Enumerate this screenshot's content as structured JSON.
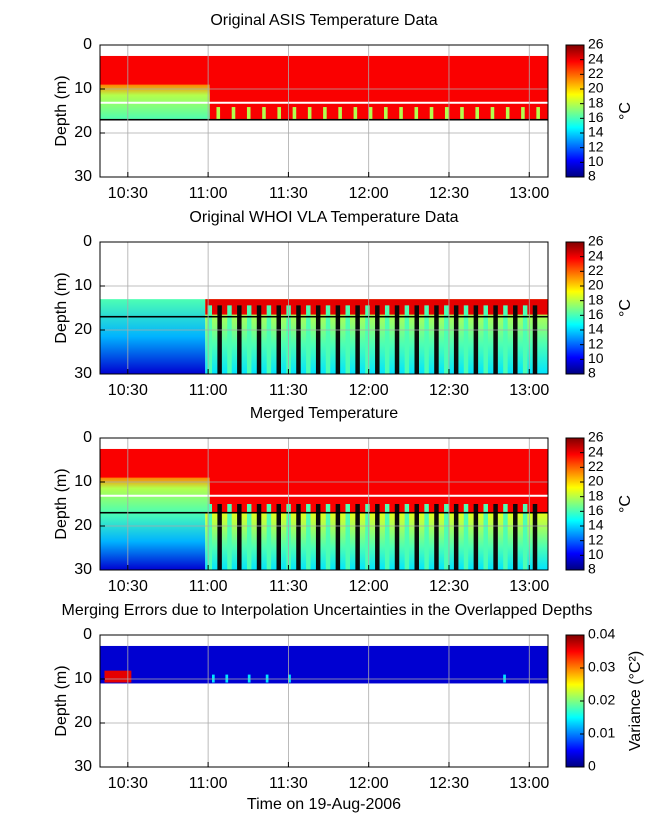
{
  "chart_data": [
    {
      "type": "contour",
      "title": "Original ASIS Temperature Data",
      "ylabel": "Depth (m)",
      "xlim": [
        619.6,
        787
      ],
      "xticks": [
        {
          "value": 630,
          "label": "10:30"
        },
        {
          "value": 660,
          "label": "11:00"
        },
        {
          "value": 690,
          "label": "11:30"
        },
        {
          "value": 720,
          "label": "12:00"
        },
        {
          "value": 750,
          "label": "12:30"
        },
        {
          "value": 780,
          "label": "13:00"
        }
      ],
      "ylim": [
        0,
        30
      ],
      "invert_y": true,
      "yticks": [
        0,
        10,
        20,
        30
      ],
      "grid": true,
      "colormap": "jet",
      "clim": [
        8,
        26
      ],
      "cticks": [
        8,
        10,
        12,
        14,
        16,
        18,
        20,
        22,
        24,
        26
      ],
      "clabel": "°C"
    },
    {
      "type": "contour",
      "title": "Original WHOI VLA Temperature Data",
      "ylabel": "Depth (m)",
      "xlim": [
        619.6,
        787
      ],
      "xticks": [
        {
          "value": 630,
          "label": "10:30"
        },
        {
          "value": 660,
          "label": "11:00"
        },
        {
          "value": 690,
          "label": "11:30"
        },
        {
          "value": 720,
          "label": "12:00"
        },
        {
          "value": 750,
          "label": "12:30"
        },
        {
          "value": 780,
          "label": "13:00"
        }
      ],
      "ylim": [
        0,
        30
      ],
      "invert_y": true,
      "yticks": [
        0,
        10,
        20,
        30
      ],
      "grid": true,
      "colormap": "jet",
      "clim": [
        8,
        26
      ],
      "cticks": [
        8,
        10,
        12,
        14,
        16,
        18,
        20,
        22,
        24,
        26
      ],
      "clabel": "°C"
    },
    {
      "type": "contour",
      "title": "Merged Temperature",
      "ylabel": "Depth (m)",
      "xlim": [
        619.6,
        787
      ],
      "xticks": [
        {
          "value": 630,
          "label": "10:30"
        },
        {
          "value": 660,
          "label": "11:00"
        },
        {
          "value": 690,
          "label": "11:30"
        },
        {
          "value": 720,
          "label": "12:00"
        },
        {
          "value": 750,
          "label": "12:30"
        },
        {
          "value": 780,
          "label": "13:00"
        }
      ],
      "ylim": [
        0,
        30
      ],
      "invert_y": true,
      "yticks": [
        0,
        10,
        20,
        30
      ],
      "grid": true,
      "colormap": "jet",
      "clim": [
        8,
        26
      ],
      "cticks": [
        8,
        10,
        12,
        14,
        16,
        18,
        20,
        22,
        24,
        26
      ],
      "clabel": "°C"
    },
    {
      "type": "contour",
      "title": "Merging Errors due to Interpolation Uncertainties in the Overlapped Depths",
      "ylabel": "Depth (m)",
      "xlabel": "Time on 19-Aug-2006",
      "xlim": [
        619.6,
        787
      ],
      "xticks": [
        {
          "value": 630,
          "label": "10:30"
        },
        {
          "value": 660,
          "label": "11:00"
        },
        {
          "value": 690,
          "label": "11:30"
        },
        {
          "value": 720,
          "label": "12:00"
        },
        {
          "value": 750,
          "label": "12:30"
        },
        {
          "value": 780,
          "label": "13:00"
        }
      ],
      "ylim": [
        0,
        30
      ],
      "invert_y": true,
      "yticks": [
        0,
        10,
        20,
        30
      ],
      "grid": true,
      "colormap": "jet",
      "clim": [
        0,
        0.04
      ],
      "cticks": [
        0,
        0.01,
        0.02,
        0.03,
        0.04
      ],
      "clabel": "Variance (°C²)"
    }
  ]
}
